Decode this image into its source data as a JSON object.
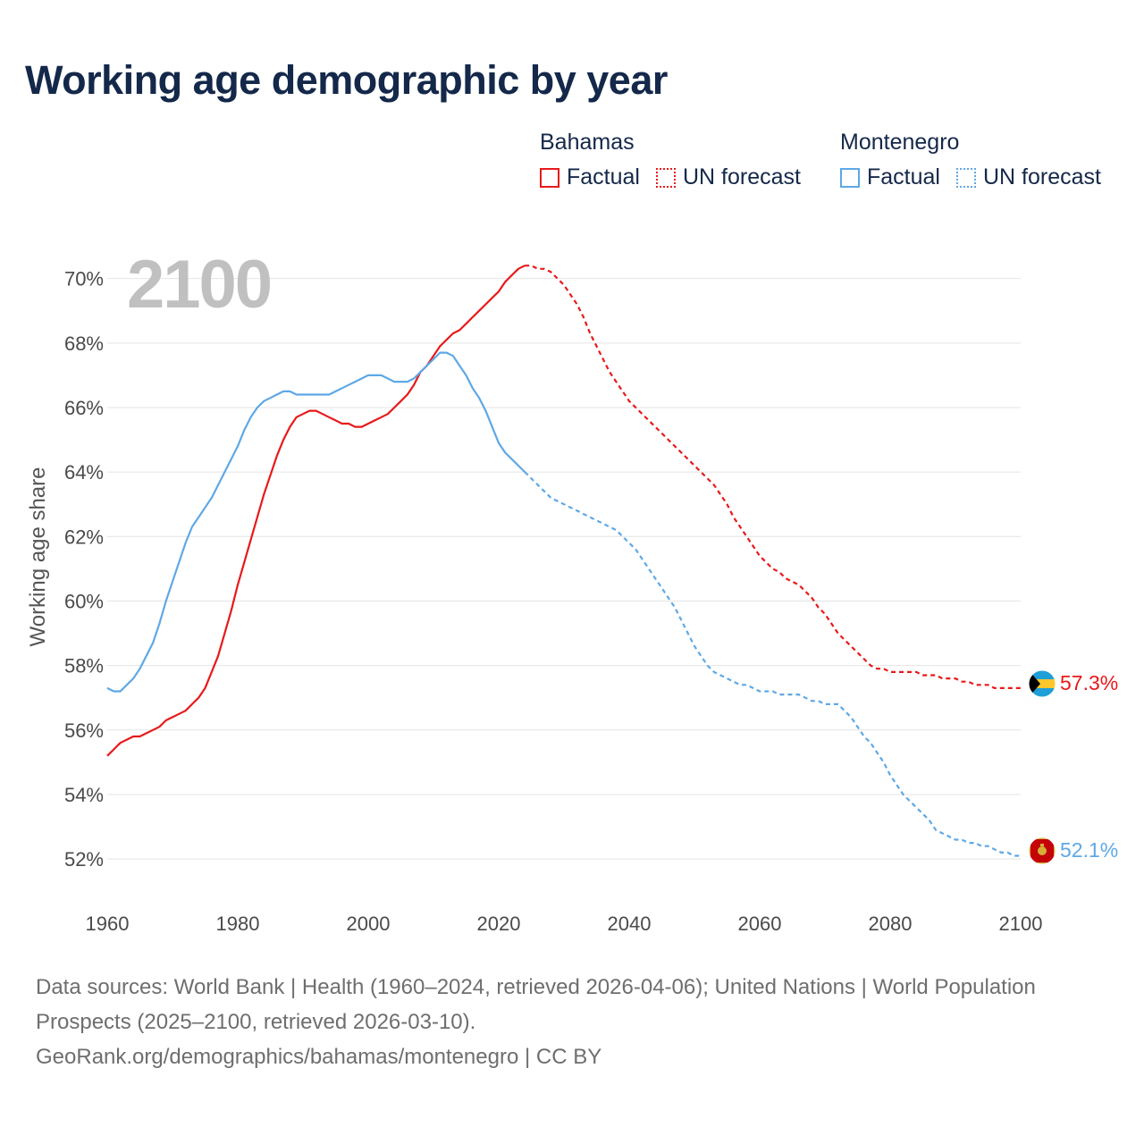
{
  "title": "Working age demographic by year",
  "year_label": "2100",
  "legend": {
    "groups": [
      {
        "name": "Bahamas",
        "factual_label": "Factual",
        "forecast_label": "UN forecast",
        "color": "#e8191a"
      },
      {
        "name": "Montenegro",
        "factual_label": "Factual",
        "forecast_label": "UN forecast",
        "color": "#5ea8e6"
      }
    ]
  },
  "footer": {
    "line1": "Data sources: World Bank | Health (1960–2024, retrieved 2026-04-06); United Nations | World Population Prospects (2025–2100, retrieved 2026-03-10).",
    "line2": "GeoRank.org/demographics/bahamas/montenegro | CC BY"
  },
  "chart_data": {
    "type": "line",
    "title": "Working age demographic by year",
    "xlabel": "",
    "ylabel": "Working age share",
    "xlim": [
      1960,
      2100
    ],
    "ylim": [
      51.2,
      70.6
    ],
    "x_ticks": [
      1960,
      1980,
      2000,
      2020,
      2040,
      2060,
      2080,
      2100
    ],
    "x_tick_labels": [
      "1960",
      "1980",
      "2000",
      "2020",
      "2040",
      "2060",
      "2080",
      "2100"
    ],
    "y_ticks": [
      52,
      54,
      56,
      58,
      60,
      62,
      64,
      66,
      68,
      70
    ],
    "y_tick_labels": [
      "52%",
      "54%",
      "56%",
      "58%",
      "60%",
      "62%",
      "64%",
      "66%",
      "68%",
      "70%"
    ],
    "grid": true,
    "series": [
      {
        "name": "Bahamas",
        "color": "#e8191a",
        "end_label": "57.3%",
        "factual": {
          "x": [
            1960,
            1961,
            1962,
            1963,
            1964,
            1965,
            1966,
            1967,
            1968,
            1969,
            1970,
            1971,
            1972,
            1973,
            1974,
            1975,
            1976,
            1977,
            1978,
            1979,
            1980,
            1981,
            1982,
            1983,
            1984,
            1985,
            1986,
            1987,
            1988,
            1989,
            1990,
            1991,
            1992,
            1993,
            1994,
            1995,
            1996,
            1997,
            1998,
            1999,
            2000,
            2001,
            2002,
            2003,
            2004,
            2005,
            2006,
            2007,
            2008,
            2009,
            2010,
            2011,
            2012,
            2013,
            2014,
            2015,
            2016,
            2017,
            2018,
            2019,
            2020,
            2021,
            2022,
            2023,
            2024
          ],
          "y": [
            55.2,
            55.4,
            55.6,
            55.7,
            55.8,
            55.8,
            55.9,
            56.0,
            56.1,
            56.3,
            56.4,
            56.5,
            56.6,
            56.8,
            57.0,
            57.3,
            57.8,
            58.3,
            59.0,
            59.7,
            60.5,
            61.2,
            61.9,
            62.6,
            63.3,
            63.9,
            64.5,
            65.0,
            65.4,
            65.7,
            65.8,
            65.9,
            65.9,
            65.8,
            65.7,
            65.6,
            65.5,
            65.5,
            65.4,
            65.4,
            65.5,
            65.6,
            65.7,
            65.8,
            66.0,
            66.2,
            66.4,
            66.7,
            67.1,
            67.3,
            67.6,
            67.9,
            68.1,
            68.3,
            68.4,
            68.6,
            68.8,
            69.0,
            69.2,
            69.4,
            69.6,
            69.9,
            70.1,
            70.3,
            70.4
          ]
        },
        "forecast": {
          "x": [
            2024,
            2025,
            2026,
            2027,
            2028,
            2029,
            2030,
            2031,
            2032,
            2033,
            2034,
            2035,
            2036,
            2037,
            2038,
            2039,
            2040,
            2041,
            2042,
            2043,
            2044,
            2045,
            2046,
            2047,
            2048,
            2049,
            2050,
            2051,
            2052,
            2053,
            2054,
            2055,
            2056,
            2057,
            2058,
            2059,
            2060,
            2061,
            2062,
            2063,
            2064,
            2065,
            2066,
            2067,
            2068,
            2069,
            2070,
            2071,
            2072,
            2073,
            2074,
            2075,
            2076,
            2077,
            2078,
            2079,
            2080,
            2081,
            2082,
            2083,
            2084,
            2085,
            2086,
            2087,
            2088,
            2089,
            2090,
            2091,
            2092,
            2093,
            2094,
            2095,
            2096,
            2097,
            2098,
            2099,
            2100
          ],
          "y": [
            70.4,
            70.4,
            70.3,
            70.3,
            70.2,
            70.0,
            69.8,
            69.5,
            69.2,
            68.8,
            68.3,
            67.9,
            67.5,
            67.1,
            66.8,
            66.5,
            66.2,
            66.0,
            65.8,
            65.6,
            65.4,
            65.2,
            65.0,
            64.8,
            64.6,
            64.4,
            64.2,
            64.0,
            63.8,
            63.6,
            63.3,
            63.0,
            62.6,
            62.3,
            62.0,
            61.7,
            61.4,
            61.2,
            61.0,
            60.9,
            60.7,
            60.6,
            60.5,
            60.3,
            60.1,
            59.8,
            59.6,
            59.3,
            59.0,
            58.8,
            58.6,
            58.4,
            58.2,
            58.0,
            57.9,
            57.9,
            57.8,
            57.8,
            57.8,
            57.8,
            57.8,
            57.7,
            57.7,
            57.7,
            57.6,
            57.6,
            57.6,
            57.5,
            57.5,
            57.4,
            57.4,
            57.4,
            57.3,
            57.3,
            57.3,
            57.3,
            57.3
          ]
        }
      },
      {
        "name": "Montenegro",
        "color": "#5ea8e6",
        "end_label": "52.1%",
        "factual": {
          "x": [
            1960,
            1961,
            1962,
            1963,
            1964,
            1965,
            1966,
            1967,
            1968,
            1969,
            1970,
            1971,
            1972,
            1973,
            1974,
            1975,
            1976,
            1977,
            1978,
            1979,
            1980,
            1981,
            1982,
            1983,
            1984,
            1985,
            1986,
            1987,
            1988,
            1989,
            1990,
            1991,
            1992,
            1993,
            1994,
            1995,
            1996,
            1997,
            1998,
            1999,
            2000,
            2001,
            2002,
            2003,
            2004,
            2005,
            2006,
            2007,
            2008,
            2009,
            2010,
            2011,
            2012,
            2013,
            2014,
            2015,
            2016,
            2017,
            2018,
            2019,
            2020,
            2021,
            2022,
            2023,
            2024
          ],
          "y": [
            57.3,
            57.2,
            57.2,
            57.4,
            57.6,
            57.9,
            58.3,
            58.7,
            59.3,
            60.0,
            60.6,
            61.2,
            61.8,
            62.3,
            62.6,
            62.9,
            63.2,
            63.6,
            64.0,
            64.4,
            64.8,
            65.3,
            65.7,
            66.0,
            66.2,
            66.3,
            66.4,
            66.5,
            66.5,
            66.4,
            66.4,
            66.4,
            66.4,
            66.4,
            66.4,
            66.5,
            66.6,
            66.7,
            66.8,
            66.9,
            67.0,
            67.0,
            67.0,
            66.9,
            66.8,
            66.8,
            66.8,
            66.9,
            67.1,
            67.3,
            67.5,
            67.7,
            67.7,
            67.6,
            67.3,
            67.0,
            66.6,
            66.3,
            65.9,
            65.4,
            64.9,
            64.6,
            64.4,
            64.2,
            64.0
          ]
        },
        "forecast": {
          "x": [
            2024,
            2025,
            2026,
            2027,
            2028,
            2029,
            2030,
            2031,
            2032,
            2033,
            2034,
            2035,
            2036,
            2037,
            2038,
            2039,
            2040,
            2041,
            2042,
            2043,
            2044,
            2045,
            2046,
            2047,
            2048,
            2049,
            2050,
            2051,
            2052,
            2053,
            2054,
            2055,
            2056,
            2057,
            2058,
            2059,
            2060,
            2061,
            2062,
            2063,
            2064,
            2065,
            2066,
            2067,
            2068,
            2069,
            2070,
            2071,
            2072,
            2073,
            2074,
            2075,
            2076,
            2077,
            2078,
            2079,
            2080,
            2081,
            2082,
            2083,
            2084,
            2085,
            2086,
            2087,
            2088,
            2089,
            2090,
            2091,
            2092,
            2093,
            2094,
            2095,
            2096,
            2097,
            2098,
            2099,
            2100
          ],
          "y": [
            64.0,
            63.8,
            63.6,
            63.4,
            63.2,
            63.1,
            63.0,
            62.9,
            62.8,
            62.7,
            62.6,
            62.5,
            62.4,
            62.3,
            62.2,
            62.0,
            61.8,
            61.6,
            61.3,
            61.0,
            60.7,
            60.4,
            60.1,
            59.8,
            59.4,
            59.0,
            58.6,
            58.3,
            58.0,
            57.8,
            57.7,
            57.6,
            57.5,
            57.4,
            57.4,
            57.3,
            57.2,
            57.2,
            57.2,
            57.1,
            57.1,
            57.1,
            57.1,
            57.0,
            56.9,
            56.9,
            56.8,
            56.8,
            56.8,
            56.6,
            56.4,
            56.1,
            55.8,
            55.6,
            55.3,
            55.0,
            54.6,
            54.3,
            54.0,
            53.8,
            53.6,
            53.4,
            53.2,
            52.9,
            52.8,
            52.7,
            52.6,
            52.6,
            52.5,
            52.5,
            52.4,
            52.4,
            52.3,
            52.2,
            52.2,
            52.1,
            52.1
          ]
        }
      }
    ]
  }
}
